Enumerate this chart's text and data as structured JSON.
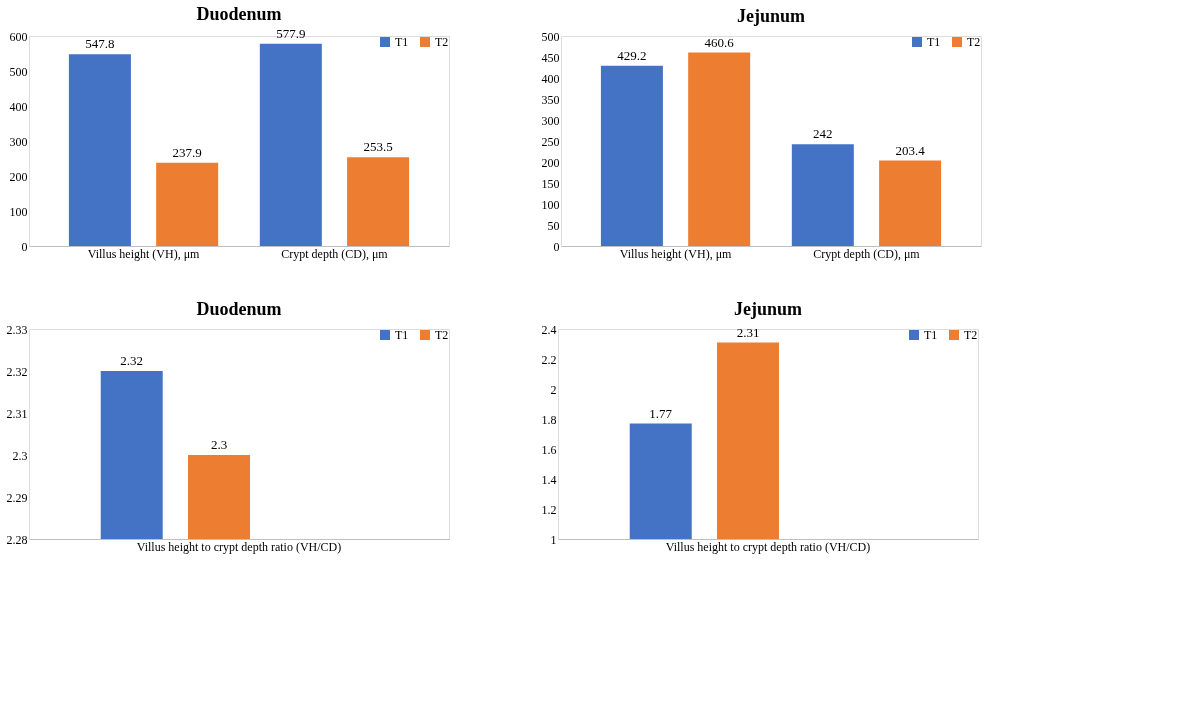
{
  "chart_data": [
    {
      "type": "bar",
      "title": "Duodenum",
      "categories": [
        "Villus height (VH), μm",
        "Crypt depth (CD), μm"
      ],
      "series": [
        {
          "name": "T1",
          "color": "#4472c4",
          "values": [
            547.8,
            577.9
          ]
        },
        {
          "name": "T2",
          "color": "#ed7d31",
          "values": [
            237.9,
            253.5
          ]
        }
      ],
      "ylim": [
        0,
        600
      ],
      "yticks": [
        0,
        100,
        200,
        300,
        400,
        500,
        600
      ],
      "data_labels": true,
      "legend": "top right",
      "grid": false
    },
    {
      "type": "bar",
      "title": "Jejunum",
      "categories": [
        "Villus height (VH), μm",
        "Crypt depth (CD), μm"
      ],
      "series": [
        {
          "name": "T1",
          "color": "#4472c4",
          "values": [
            429.2,
            242
          ]
        },
        {
          "name": "T2",
          "color": "#ed7d31",
          "values": [
            460.6,
            203.4
          ]
        }
      ],
      "ylim": [
        0,
        500
      ],
      "yticks": [
        0,
        50,
        100,
        150,
        200,
        250,
        300,
        350,
        400,
        450,
        500
      ],
      "data_labels": true,
      "legend": "top right",
      "grid": false
    },
    {
      "type": "bar",
      "title": "Duodenum",
      "categories": [
        "Villus height to crypt depth ratio (VH/CD)"
      ],
      "series": [
        {
          "name": "T1",
          "color": "#4472c4",
          "values": [
            2.32
          ]
        },
        {
          "name": "T2",
          "color": "#ed7d31",
          "values": [
            2.3
          ]
        }
      ],
      "ylim": [
        2.28,
        2.33
      ],
      "yticks": [
        2.28,
        2.29,
        2.3,
        2.31,
        2.32,
        2.33
      ],
      "data_labels": true,
      "legend": "top right",
      "grid": false
    },
    {
      "type": "bar",
      "title": "Jejunum",
      "categories": [
        "Villus height to crypt depth ratio (VH/CD)"
      ],
      "series": [
        {
          "name": "T1",
          "color": "#4472c4",
          "values": [
            1.77
          ]
        },
        {
          "name": "T2",
          "color": "#ed7d31",
          "values": [
            2.31
          ]
        }
      ],
      "ylim": [
        1,
        2.4
      ],
      "yticks": [
        1,
        1.2,
        1.4,
        1.6,
        1.8,
        2,
        2.2,
        2.4
      ],
      "data_labels": true,
      "legend": "top right",
      "grid": false
    }
  ]
}
